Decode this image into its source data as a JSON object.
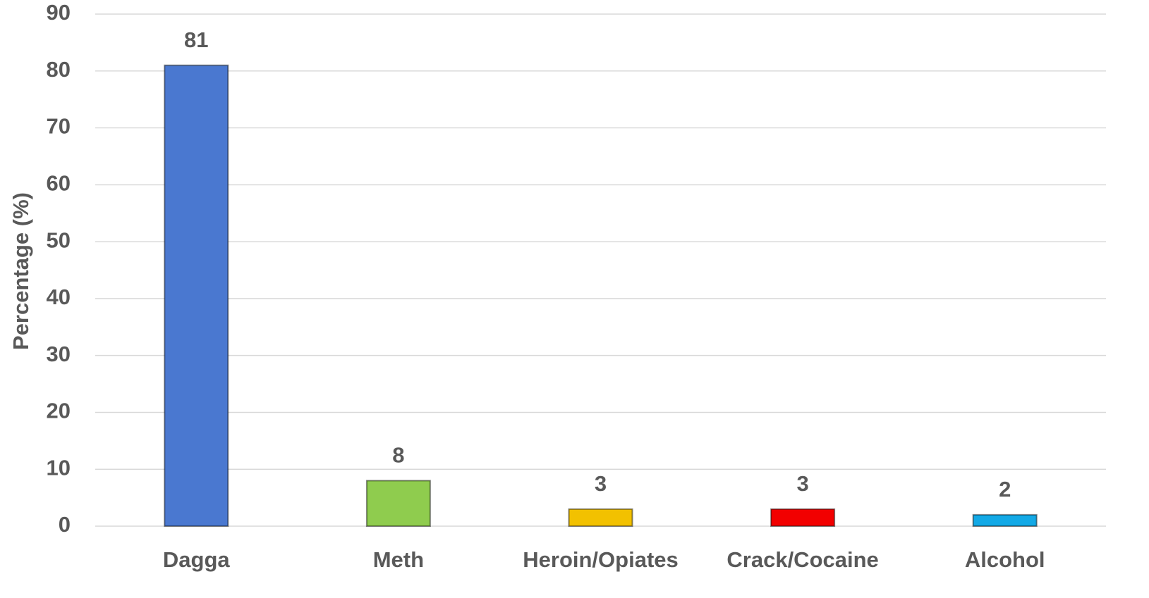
{
  "chart_data": {
    "type": "bar",
    "y_axis_label": "Percentage (%)",
    "categories": [
      "Dagga",
      "Meth",
      "Heroin/Opiates",
      "Crack/Cocaine",
      "Alcohol"
    ],
    "values": [
      81,
      8,
      3,
      3,
      2
    ],
    "colors": [
      "#4a78d0",
      "#8fcc4e",
      "#f2c100",
      "#f20000",
      "#13a9e6"
    ],
    "ylim": [
      0,
      90
    ],
    "yticks": [
      0,
      10,
      20,
      30,
      40,
      50,
      60,
      70,
      80,
      90
    ],
    "grid": true
  }
}
